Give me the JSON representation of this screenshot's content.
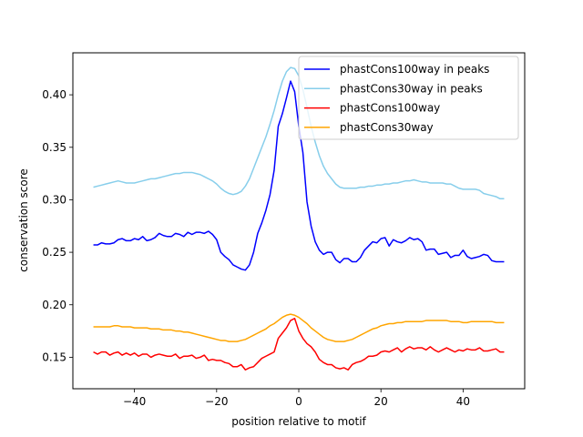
{
  "chart_data": {
    "type": "line",
    "title": "",
    "xlabel": "position relative to motif",
    "ylabel": "conservation score",
    "xlim": [
      -55,
      55
    ],
    "ylim": [
      0.12,
      0.44
    ],
    "xticks": [
      -40,
      -20,
      0,
      20,
      40
    ],
    "xtick_labels": [
      "−40",
      "−20",
      "0",
      "20",
      "40"
    ],
    "yticks": [
      0.15,
      0.2,
      0.25,
      0.3,
      0.35,
      0.4
    ],
    "ytick_labels": [
      "0.15",
      "0.20",
      "0.25",
      "0.30",
      "0.35",
      "0.40"
    ],
    "grid": false,
    "legend_position": "top-right",
    "x": [
      -50,
      -49,
      -48,
      -47,
      -46,
      -45,
      -44,
      -43,
      -42,
      -41,
      -40,
      -39,
      -38,
      -37,
      -36,
      -35,
      -34,
      -33,
      -32,
      -31,
      -30,
      -29,
      -28,
      -27,
      -26,
      -25,
      -24,
      -23,
      -22,
      -21,
      -20,
      -19,
      -18,
      -17,
      -16,
      -15,
      -14,
      -13,
      -12,
      -11,
      -10,
      -9,
      -8,
      -7,
      -6,
      -5,
      -4,
      -3,
      -2,
      -1,
      0,
      1,
      2,
      3,
      4,
      5,
      6,
      7,
      8,
      9,
      10,
      11,
      12,
      13,
      14,
      15,
      16,
      17,
      18,
      19,
      20,
      21,
      22,
      23,
      24,
      25,
      26,
      27,
      28,
      29,
      30,
      31,
      32,
      33,
      34,
      35,
      36,
      37,
      38,
      39,
      40,
      41,
      42,
      43,
      44,
      45,
      46,
      47,
      48,
      49,
      50
    ],
    "series": [
      {
        "name": "phastCons100way in peaks",
        "color": "#0000ff",
        "values": [
          0.257,
          0.257,
          0.259,
          0.258,
          0.258,
          0.259,
          0.262,
          0.263,
          0.261,
          0.261,
          0.263,
          0.262,
          0.265,
          0.261,
          0.262,
          0.264,
          0.268,
          0.266,
          0.265,
          0.265,
          0.268,
          0.267,
          0.265,
          0.269,
          0.267,
          0.269,
          0.269,
          0.268,
          0.27,
          0.267,
          0.262,
          0.25,
          0.246,
          0.243,
          0.238,
          0.236,
          0.234,
          0.233,
          0.238,
          0.25,
          0.268,
          0.278,
          0.29,
          0.305,
          0.328,
          0.37,
          0.382,
          0.397,
          0.413,
          0.403,
          0.37,
          0.345,
          0.298,
          0.275,
          0.26,
          0.252,
          0.248,
          0.25,
          0.25,
          0.243,
          0.24,
          0.244,
          0.244,
          0.241,
          0.241,
          0.245,
          0.252,
          0.256,
          0.26,
          0.259,
          0.263,
          0.264,
          0.256,
          0.262,
          0.26,
          0.259,
          0.261,
          0.264,
          0.262,
          0.263,
          0.26,
          0.252,
          0.253,
          0.253,
          0.248,
          0.249,
          0.25,
          0.245,
          0.247,
          0.247,
          0.252,
          0.246,
          0.244,
          0.245,
          0.246,
          0.248,
          0.247,
          0.242,
          0.241,
          0.241,
          0.241
        ]
      },
      {
        "name": "phastCons30way in peaks",
        "color": "#87ceeb",
        "values": [
          0.312,
          0.313,
          0.314,
          0.315,
          0.316,
          0.317,
          0.318,
          0.317,
          0.316,
          0.316,
          0.316,
          0.317,
          0.318,
          0.319,
          0.32,
          0.32,
          0.321,
          0.322,
          0.323,
          0.324,
          0.325,
          0.325,
          0.326,
          0.326,
          0.326,
          0.325,
          0.324,
          0.322,
          0.32,
          0.318,
          0.315,
          0.311,
          0.308,
          0.306,
          0.305,
          0.306,
          0.308,
          0.313,
          0.32,
          0.33,
          0.34,
          0.35,
          0.36,
          0.372,
          0.385,
          0.4,
          0.413,
          0.422,
          0.426,
          0.425,
          0.418,
          0.405,
          0.388,
          0.37,
          0.355,
          0.342,
          0.332,
          0.325,
          0.32,
          0.315,
          0.312,
          0.311,
          0.311,
          0.311,
          0.311,
          0.312,
          0.312,
          0.313,
          0.313,
          0.314,
          0.314,
          0.315,
          0.315,
          0.316,
          0.316,
          0.317,
          0.318,
          0.318,
          0.319,
          0.318,
          0.317,
          0.317,
          0.316,
          0.316,
          0.316,
          0.316,
          0.315,
          0.315,
          0.313,
          0.311,
          0.31,
          0.31,
          0.31,
          0.31,
          0.309,
          0.306,
          0.305,
          0.304,
          0.303,
          0.301,
          0.301
        ]
      },
      {
        "name": "phastCons100way",
        "color": "#ff0000",
        "values": [
          0.155,
          0.153,
          0.155,
          0.155,
          0.152,
          0.154,
          0.155,
          0.152,
          0.154,
          0.152,
          0.154,
          0.151,
          0.153,
          0.153,
          0.15,
          0.152,
          0.153,
          0.152,
          0.151,
          0.151,
          0.153,
          0.149,
          0.151,
          0.151,
          0.152,
          0.149,
          0.15,
          0.152,
          0.147,
          0.148,
          0.147,
          0.147,
          0.145,
          0.144,
          0.141,
          0.141,
          0.143,
          0.138,
          0.14,
          0.141,
          0.145,
          0.149,
          0.151,
          0.153,
          0.155,
          0.168,
          0.173,
          0.178,
          0.185,
          0.187,
          0.175,
          0.168,
          0.163,
          0.16,
          0.155,
          0.148,
          0.145,
          0.143,
          0.143,
          0.14,
          0.139,
          0.14,
          0.138,
          0.143,
          0.145,
          0.146,
          0.148,
          0.151,
          0.151,
          0.152,
          0.155,
          0.156,
          0.155,
          0.157,
          0.159,
          0.155,
          0.158,
          0.16,
          0.158,
          0.159,
          0.159,
          0.157,
          0.16,
          0.157,
          0.155,
          0.157,
          0.159,
          0.157,
          0.155,
          0.157,
          0.156,
          0.158,
          0.157,
          0.157,
          0.159,
          0.156,
          0.156,
          0.157,
          0.158,
          0.155,
          0.155
        ]
      },
      {
        "name": "phastCons30way",
        "color": "#ffa500",
        "values": [
          0.179,
          0.179,
          0.179,
          0.179,
          0.179,
          0.18,
          0.18,
          0.179,
          0.179,
          0.179,
          0.178,
          0.178,
          0.178,
          0.178,
          0.177,
          0.177,
          0.177,
          0.176,
          0.176,
          0.176,
          0.175,
          0.175,
          0.174,
          0.174,
          0.173,
          0.172,
          0.171,
          0.17,
          0.169,
          0.168,
          0.167,
          0.166,
          0.166,
          0.165,
          0.165,
          0.165,
          0.166,
          0.167,
          0.169,
          0.171,
          0.173,
          0.175,
          0.177,
          0.18,
          0.182,
          0.185,
          0.188,
          0.19,
          0.191,
          0.19,
          0.188,
          0.185,
          0.182,
          0.178,
          0.175,
          0.172,
          0.169,
          0.167,
          0.166,
          0.165,
          0.165,
          0.165,
          0.166,
          0.167,
          0.169,
          0.171,
          0.173,
          0.175,
          0.177,
          0.178,
          0.18,
          0.181,
          0.182,
          0.182,
          0.183,
          0.183,
          0.184,
          0.184,
          0.184,
          0.184,
          0.184,
          0.185,
          0.185,
          0.185,
          0.185,
          0.185,
          0.185,
          0.184,
          0.184,
          0.184,
          0.183,
          0.183,
          0.184,
          0.184,
          0.184,
          0.184,
          0.184,
          0.184,
          0.183,
          0.183,
          0.183
        ]
      }
    ]
  }
}
